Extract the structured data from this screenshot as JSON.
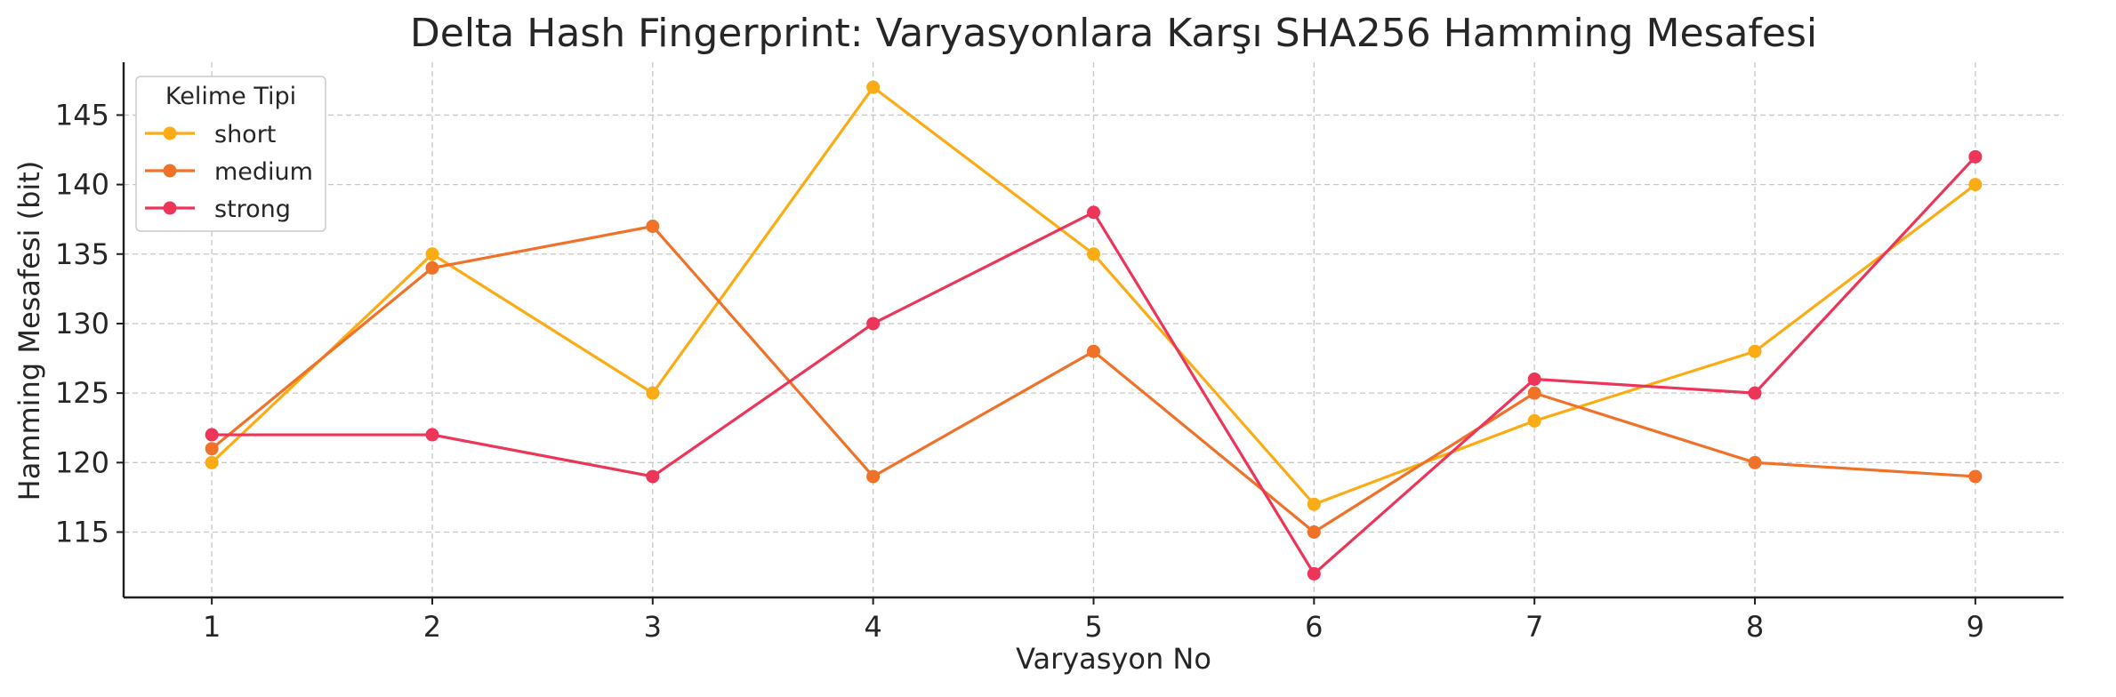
{
  "chart_data": {
    "type": "line",
    "title": "Delta Hash Fingerprint: Varyasyonlara Karşı SHA256 Hamming Mesafesi",
    "xlabel": "Varyasyon No",
    "ylabel": "Hamming Mesafesi (bit)",
    "x": [
      1,
      2,
      3,
      4,
      5,
      6,
      7,
      8,
      9
    ],
    "xlim": [
      0.6,
      9.4
    ],
    "ylim": [
      110.3,
      148.8
    ],
    "yticks": [
      115,
      120,
      125,
      130,
      135,
      140,
      145
    ],
    "grid": true,
    "legend": {
      "title": "Kelime Tipi",
      "placement": "top-left"
    },
    "series": [
      {
        "name": "short",
        "color": "#fbac14",
        "values": [
          120,
          135,
          125,
          147,
          135,
          117,
          123,
          128,
          140
        ]
      },
      {
        "name": "medium",
        "color": "#f07128",
        "values": [
          121,
          134,
          137,
          119,
          128,
          115,
          125,
          120,
          119
        ]
      },
      {
        "name": "strong",
        "color": "#ec3558",
        "values": [
          122,
          122,
          119,
          130,
          138,
          112,
          126,
          125,
          142
        ]
      }
    ]
  }
}
